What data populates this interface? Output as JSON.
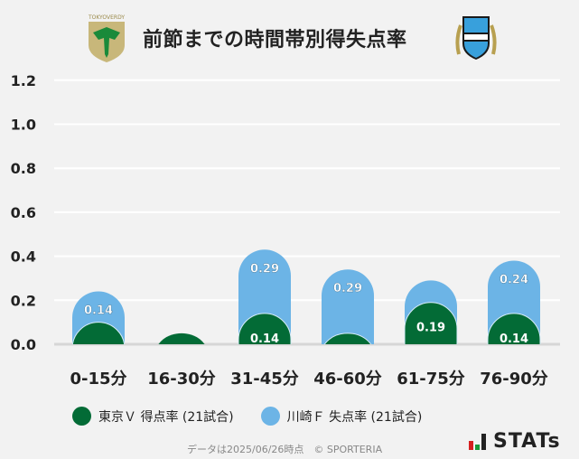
{
  "header": {
    "title": "前節までの時間帯別得失点率",
    "left_logo": "TOKYO VERDY",
    "right_logo": "KAWASAKI FRONTALE"
  },
  "chart_data": {
    "type": "bar",
    "stacked": true,
    "categories": [
      "0-15分",
      "16-30分",
      "31-45分",
      "46-60分",
      "61-75分",
      "76-90分"
    ],
    "series": [
      {
        "name": "東京Ｖ 得点率 (21試合)",
        "color": "#036b36",
        "values": [
          0.1,
          0.05,
          0.14,
          0.05,
          0.19,
          0.14
        ],
        "labels": [
          "",
          "",
          "0.14",
          "",
          "0.19",
          "0.14"
        ]
      },
      {
        "name": "川崎Ｆ 失点率 (21試合)",
        "color": "#6cb4e6",
        "values": [
          0.14,
          0.0,
          0.29,
          0.29,
          0.1,
          0.24
        ],
        "labels": [
          "0.14",
          "",
          "0.29",
          "0.29",
          "",
          "0.24"
        ]
      }
    ],
    "yticks": [
      "0.0",
      "0.2",
      "0.4",
      "0.6",
      "0.8",
      "1.0",
      "1.2"
    ],
    "ylim": [
      0,
      1.2
    ],
    "grid": true,
    "legend": "bottom"
  },
  "footer": {
    "note": "データは2025/06/26時点　© SPORTERIA",
    "brand": "STATs"
  }
}
